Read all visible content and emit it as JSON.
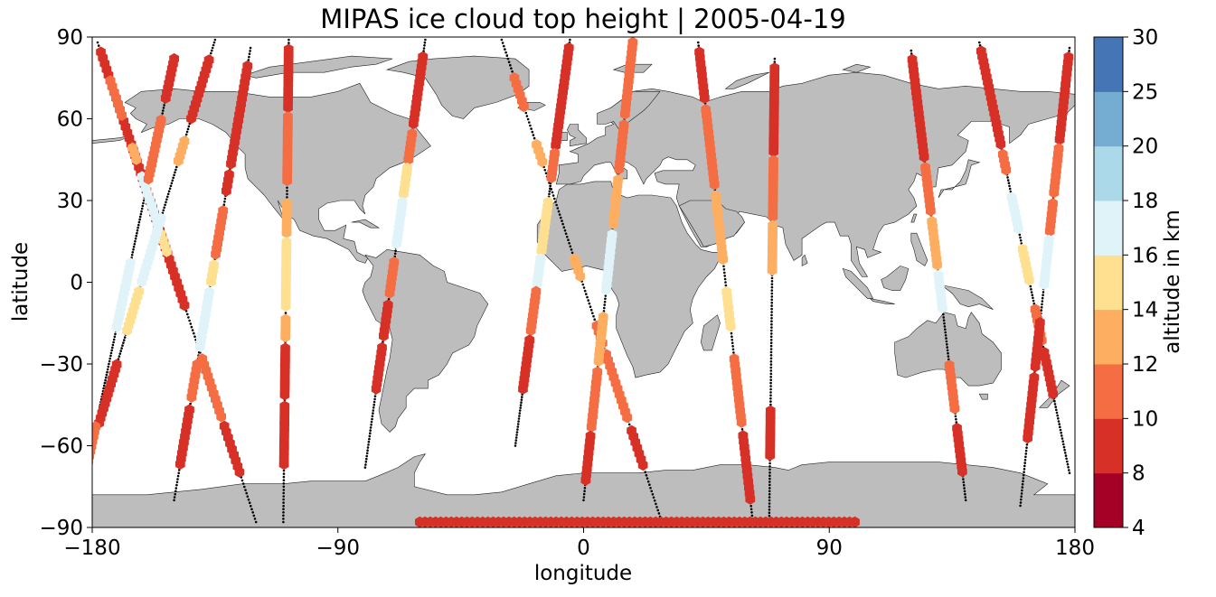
{
  "chart_data": {
    "type": "scatter",
    "title": "MIPAS ice cloud top height | 2005-04-19",
    "xlabel": "longitude",
    "ylabel": "latitude",
    "xlim": [
      -180,
      180
    ],
    "ylim": [
      -90,
      90
    ],
    "xticks": [
      -180,
      -90,
      0,
      90,
      180
    ],
    "yticks": [
      -90,
      -60,
      -30,
      0,
      30,
      60,
      90
    ],
    "xtick_labels": [
      "−180",
      "−90",
      "0",
      "90",
      "180"
    ],
    "ytick_labels": [
      "−90",
      "−60",
      "−30",
      "0",
      "30",
      "60",
      "90"
    ],
    "background": "world map, land shown in grey",
    "land_color": "#bdbdbd",
    "colorbar": {
      "label": "altitude in km",
      "boundaries": [
        4,
        8,
        10,
        12,
        14,
        16,
        18,
        20,
        25,
        30
      ],
      "tick_labels": [
        "4",
        "8",
        "10",
        "12",
        "14",
        "16",
        "18",
        "20",
        "25",
        "30"
      ],
      "colors": [
        "#a50026",
        "#d73027",
        "#f46d43",
        "#fdae61",
        "#fee090",
        "#e0f3f8",
        "#abd9e9",
        "#74add1",
        "#4575b4"
      ]
    },
    "tracks": [
      {
        "lon0": -178,
        "lat0": 88,
        "lon1": -120,
        "lat1": -88,
        "segments": [
          [
            0.02,
            0.55,
            9
          ],
          [
            0.08,
            0.16,
            11
          ],
          [
            0.22,
            0.25,
            12
          ],
          [
            0.28,
            0.38,
            17
          ],
          [
            0.4,
            0.44,
            15
          ],
          [
            0.66,
            0.78,
            11
          ],
          [
            0.8,
            0.9,
            8
          ]
        ]
      },
      {
        "lon0": -135,
        "lat0": 89,
        "lon1": -180,
        "lat1": -60,
        "segments": [
          [
            0.05,
            0.2,
            8
          ],
          [
            0.25,
            0.3,
            12
          ],
          [
            0.44,
            0.6,
            17
          ],
          [
            0.62,
            0.72,
            15
          ],
          [
            0.8,
            0.95,
            9
          ]
        ]
      },
      {
        "lon0": -150,
        "lat0": 82,
        "lon1": -182,
        "lat1": -68,
        "segments": [
          [
            0.0,
            0.1,
            8
          ],
          [
            0.15,
            0.3,
            11
          ],
          [
            0.5,
            0.66,
            17
          ],
          [
            0.9,
            1.0,
            11
          ]
        ]
      },
      {
        "lon0": -108,
        "lat0": 89,
        "lon1": -110,
        "lat1": -88,
        "segments": [
          [
            0.02,
            0.14,
            9
          ],
          [
            0.16,
            0.3,
            11
          ],
          [
            0.34,
            0.4,
            13
          ],
          [
            0.42,
            0.56,
            15
          ],
          [
            0.58,
            0.62,
            12
          ],
          [
            0.64,
            0.74,
            9
          ],
          [
            0.76,
            0.88,
            8
          ]
        ]
      },
      {
        "lon0": -122,
        "lat0": 86,
        "lon1": -150,
        "lat1": -80,
        "segments": [
          [
            0.04,
            0.26,
            8
          ],
          [
            0.28,
            0.32,
            9
          ],
          [
            0.36,
            0.46,
            11
          ],
          [
            0.48,
            0.52,
            14
          ],
          [
            0.54,
            0.66,
            17
          ],
          [
            0.7,
            0.78,
            10
          ],
          [
            0.8,
            0.92,
            8
          ]
        ]
      },
      {
        "lon0": -58,
        "lat0": 89,
        "lon1": -80,
        "lat1": -68,
        "segments": [
          [
            0.04,
            0.2,
            9
          ],
          [
            0.22,
            0.28,
            11
          ],
          [
            0.3,
            0.36,
            15
          ],
          [
            0.38,
            0.48,
            17
          ],
          [
            0.52,
            0.6,
            11
          ],
          [
            0.62,
            0.7,
            9
          ],
          [
            0.72,
            0.82,
            8
          ]
        ]
      },
      {
        "lon0": -30,
        "lat0": 89,
        "lon1": 28,
        "lat1": -86,
        "segments": [
          [
            0.08,
            0.14,
            11
          ],
          [
            0.22,
            0.26,
            12
          ],
          [
            0.46,
            0.5,
            13
          ],
          [
            0.6,
            0.64,
            11
          ],
          [
            0.66,
            0.8,
            10
          ],
          [
            0.82,
            0.9,
            9
          ]
        ]
      },
      {
        "lon0": -5,
        "lat0": 89,
        "lon1": -25,
        "lat1": -60,
        "segments": [
          [
            0.02,
            0.26,
            8
          ],
          [
            0.28,
            0.34,
            11
          ],
          [
            0.4,
            0.52,
            15
          ],
          [
            0.54,
            0.6,
            17
          ],
          [
            0.62,
            0.72,
            11
          ],
          [
            0.74,
            0.86,
            9
          ]
        ]
      },
      {
        "lon0": 18,
        "lat0": 88,
        "lon1": 0,
        "lat1": -80,
        "segments": [
          [
            0.0,
            0.16,
            10
          ],
          [
            0.18,
            0.28,
            11
          ],
          [
            0.3,
            0.4,
            12
          ],
          [
            0.42,
            0.54,
            16
          ],
          [
            0.6,
            0.7,
            13
          ],
          [
            0.72,
            0.84,
            11
          ],
          [
            0.86,
            0.96,
            9
          ]
        ]
      },
      {
        "lon0": 42,
        "lat0": 88,
        "lon1": 62,
        "lat1": -88,
        "segments": [
          [
            0.02,
            0.12,
            9
          ],
          [
            0.14,
            0.3,
            11
          ],
          [
            0.32,
            0.46,
            13
          ],
          [
            0.52,
            0.6,
            14
          ],
          [
            0.66,
            0.8,
            11
          ],
          [
            0.82,
            0.96,
            9
          ]
        ]
      },
      {
        "lon0": 70,
        "lat0": 82,
        "lon1": 68,
        "lat1": -88,
        "segments": [
          [
            0.02,
            0.2,
            9
          ],
          [
            0.22,
            0.34,
            11
          ],
          [
            0.36,
            0.46,
            13
          ],
          [
            0.76,
            0.86,
            9
          ]
        ]
      },
      {
        "lon0": 120,
        "lat0": 85,
        "lon1": 140,
        "lat1": -80,
        "segments": [
          [
            0.02,
            0.24,
            8
          ],
          [
            0.26,
            0.36,
            11
          ],
          [
            0.38,
            0.48,
            12
          ],
          [
            0.5,
            0.58,
            17
          ],
          [
            0.7,
            0.8,
            11
          ],
          [
            0.84,
            0.94,
            8
          ]
        ]
      },
      {
        "lon0": 145,
        "lat0": 88,
        "lon1": 178,
        "lat1": -70,
        "segments": [
          [
            0.02,
            0.24,
            8
          ],
          [
            0.26,
            0.3,
            11
          ],
          [
            0.36,
            0.44,
            17
          ],
          [
            0.48,
            0.56,
            15
          ],
          [
            0.62,
            0.7,
            10
          ],
          [
            0.72,
            0.82,
            9
          ]
        ]
      },
      {
        "lon0": 178,
        "lat0": 86,
        "lon1": 160,
        "lat1": -82,
        "segments": [
          [
            0.02,
            0.2,
            8
          ],
          [
            0.22,
            0.32,
            10
          ],
          [
            0.34,
            0.4,
            11
          ],
          [
            0.42,
            0.52,
            17
          ],
          [
            0.6,
            0.7,
            9
          ],
          [
            0.72,
            0.86,
            8
          ]
        ]
      },
      {
        "lon0": -60,
        "lat0": -88,
        "lon1": 100,
        "lat1": -88,
        "segments": [
          [
            0.0,
            1.0,
            9
          ]
        ]
      }
    ]
  }
}
